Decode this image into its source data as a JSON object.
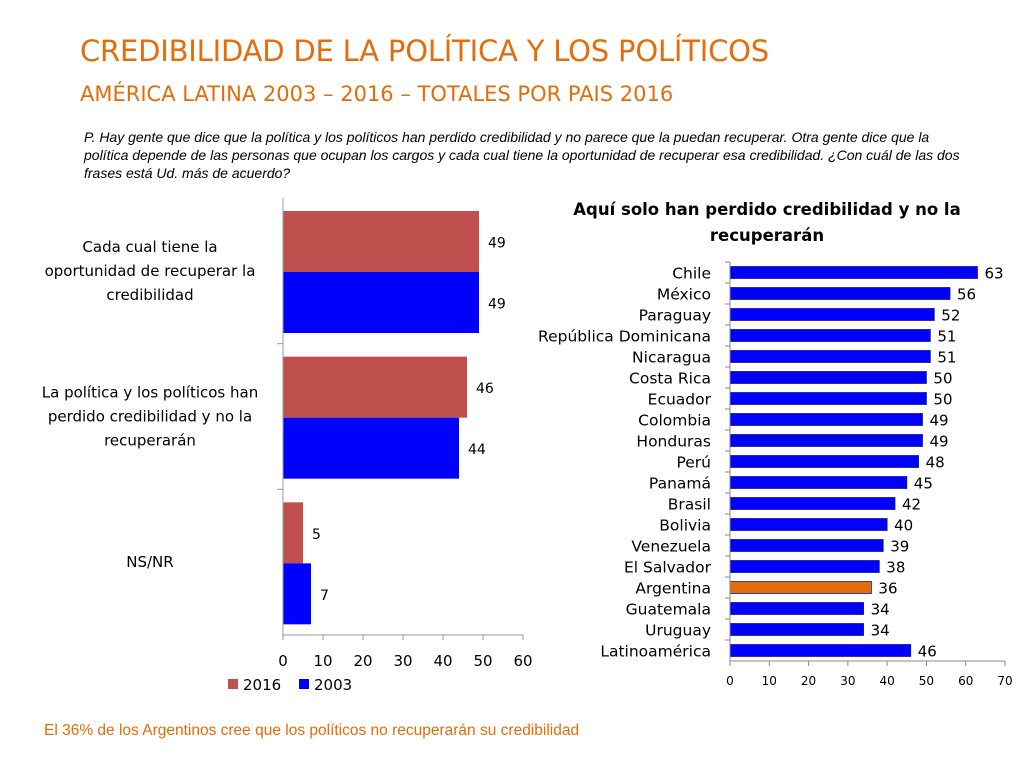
{
  "header": {
    "title": "CREDIBILIDAD DE LA POLÍTICA Y LOS POLÍTICOS",
    "subtitle": "AMÉRICA LATINA 2003 – 2016 – TOTALES POR PAIS 2016",
    "question": "P. Hay gente que dice que la política y los políticos han perdido credibilidad y no parece que la puedan recuperar. Otra gente dice que la política depende de las personas que ocupan los cargos y cada cual tiene la oportunidad de recuperar esa credibilidad. ¿Con cuál de las dos frases está Ud. más de acuerdo?"
  },
  "footer": {
    "note": "El 36% de los Argentinos cree que los políticos no recuperarán su credibilidad"
  },
  "chart_data": [
    {
      "type": "bar",
      "orientation": "horizontal",
      "title": "",
      "categories": [
        "Cada cual tiene la oportunidad de recuperar la credibilidad",
        "La política y los políticos han perdido credibilidad y no la recuperarán",
        "NS/NR"
      ],
      "category_lines": [
        [
          "Cada cual tiene la",
          "oportunidad de recuperar la",
          "credibilidad"
        ],
        [
          "La política y los políticos han",
          "perdido credibilidad y no la",
          "recuperarán"
        ],
        [
          "NS/NR"
        ]
      ],
      "series": [
        {
          "name": "2016",
          "color": "#C0504D",
          "values": [
            49,
            46,
            5
          ]
        },
        {
          "name": "2003",
          "color": "#0000FF",
          "values": [
            49,
            44,
            7
          ]
        }
      ],
      "xlim": [
        0,
        60
      ],
      "ticks": [
        0,
        10,
        20,
        30,
        40,
        50,
        60
      ],
      "legend": "bottom"
    },
    {
      "type": "bar",
      "orientation": "horizontal",
      "title": "Aquí solo han perdido credibilidad y no la recuperarán",
      "title_lines": [
        "Aquí solo han perdido credibilidad y no la",
        "recuperarán"
      ],
      "categories": [
        "Chile",
        "México",
        "Paraguay",
        "República Dominicana",
        "Nicaragua",
        "Costa Rica",
        "Ecuador",
        "Colombia",
        "Honduras",
        "Perú",
        "Panamá",
        "Brasil",
        "Bolivia",
        "Venezuela",
        "El Salvador",
        "Argentina",
        "Guatemala",
        "Uruguay",
        "Latinoamérica"
      ],
      "values": [
        63,
        56,
        52,
        51,
        51,
        50,
        50,
        49,
        49,
        48,
        45,
        42,
        40,
        39,
        38,
        36,
        34,
        34,
        46
      ],
      "bar_color": "#0000FF",
      "highlight": {
        "category": "Argentina",
        "color": "#E46C0A"
      },
      "xlim": [
        0,
        70
      ],
      "ticks": [
        0,
        10,
        20,
        30,
        40,
        50,
        60,
        70
      ]
    }
  ]
}
